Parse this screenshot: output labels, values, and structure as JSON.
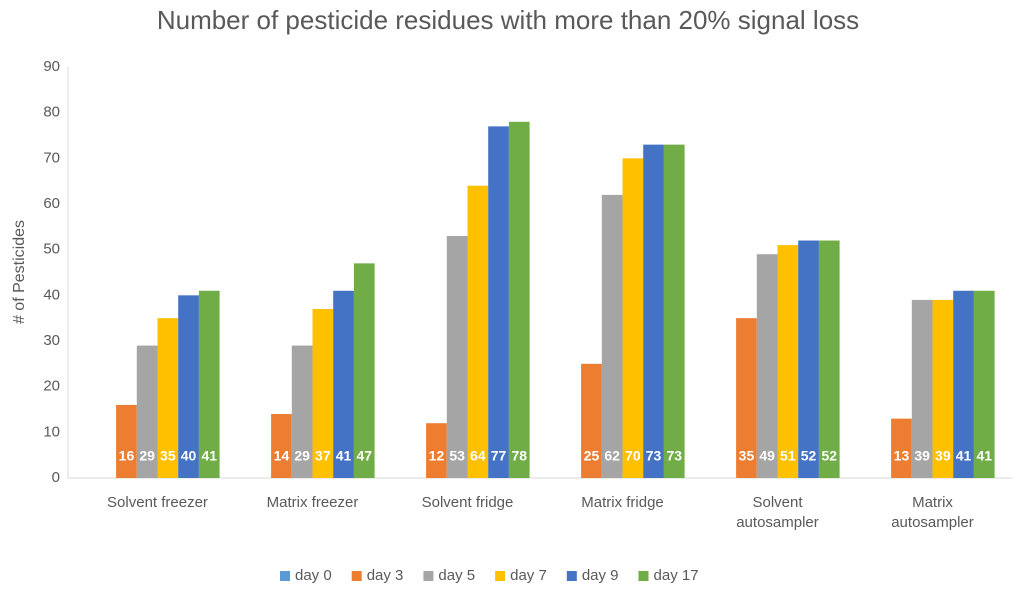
{
  "chart_data": {
    "type": "bar",
    "title": "Number of pesticide residues with more than 20% signal loss",
    "y_label": "# of Pesticides",
    "categories": [
      "Solvent freezer",
      "Matrix freezer",
      "Solvent fridge",
      "Matrix fridge",
      "Solvent autosampler",
      "Matrix autosampler"
    ],
    "series": [
      {
        "name": "day 0",
        "color": "#5b9bd5",
        "values": [
          0,
          0,
          0,
          0,
          0,
          0
        ]
      },
      {
        "name": "day 3",
        "color": "#ed7d31",
        "values": [
          16,
          14,
          12,
          25,
          35,
          13
        ]
      },
      {
        "name": "day 5",
        "color": "#a5a5a5",
        "values": [
          29,
          29,
          53,
          62,
          49,
          39
        ]
      },
      {
        "name": "day 7",
        "color": "#ffc000",
        "values": [
          35,
          37,
          64,
          70,
          51,
          39
        ]
      },
      {
        "name": "day 9",
        "color": "#4472c4",
        "values": [
          40,
          41,
          77,
          73,
          52,
          41
        ]
      },
      {
        "name": "day 17",
        "color": "#70ad47",
        "values": [
          41,
          47,
          78,
          73,
          52,
          41
        ]
      }
    ],
    "ylim": [
      0,
      90
    ],
    "yticks": [
      0,
      10,
      20,
      30,
      40,
      50,
      60,
      70,
      80,
      90
    ],
    "grid": false,
    "legend": "bottom"
  }
}
